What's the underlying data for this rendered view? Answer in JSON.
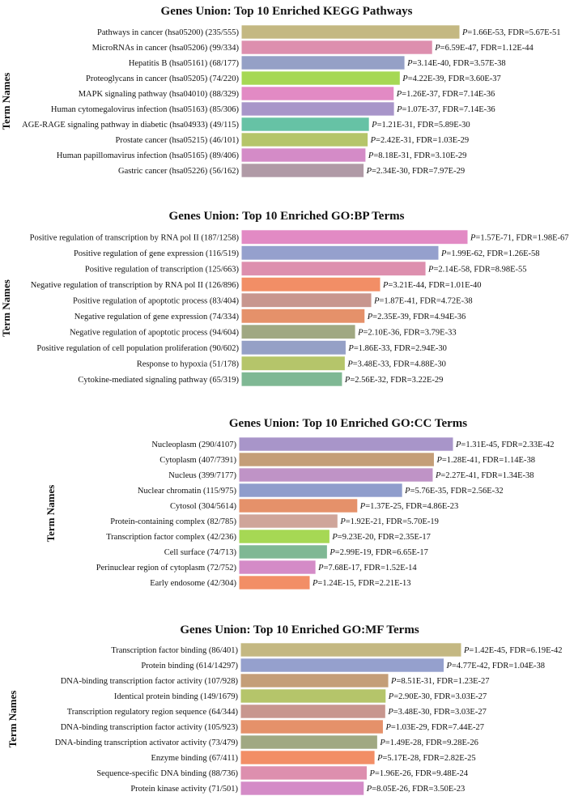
{
  "chart_data": [
    {
      "type": "bar",
      "orientation": "horizontal",
      "title": "Genes Union: Top 10 Enriched KEGG Pathways",
      "ylabel": "Term Names",
      "bar_value": "-log10(P)",
      "categories": [
        "Pathways in cancer (hsa05200) (235/555)",
        "MicroRNAs in cancer (hsa05206) (99/334)",
        "Hepatitis B (hsa05161) (68/177)",
        "Proteoglycans in cancer (hsa05205) (74/220)",
        "MAPK signaling pathway (hsa04010) (88/329)",
        "Human cytomegalovirus infection (hsa05163) (85/306)",
        "AGE-RAGE signaling pathway in diabetic (hsa04933) (49/115)",
        "Prostate cancer (hsa05215) (46/101)",
        "Human papillomavirus infection (hsa05165) (89/406)",
        "Gastric cancer (hsa05226) (56/162)"
      ],
      "p_values": [
        "1.66E-53",
        "6.59E-47",
        "3.14E-40",
        "4.22E-39",
        "1.26E-37",
        "1.07E-37",
        "1.21E-31",
        "2.42E-31",
        "8.18E-31",
        "2.34E-30"
      ],
      "fdr": [
        "5.67E-51",
        "1.12E-44",
        "3.57E-38",
        "3.60E-37",
        "7.14E-36",
        "7.14E-36",
        "5.89E-30",
        "1.03E-29",
        "3.10E-29",
        "7.97E-29"
      ],
      "colors": [
        "#c4b882",
        "#dd8fae",
        "#95a0c6",
        "#a6d854",
        "#e28ac4",
        "#a895c9",
        "#66c2a5",
        "#b5c56a",
        "#d48bc7",
        "#b09aa6"
      ]
    },
    {
      "type": "bar",
      "orientation": "horizontal",
      "title": "Genes Union: Top 10 Enriched GO:BP Terms",
      "ylabel": "Term Names",
      "bar_value": "-log10(P)",
      "categories": [
        "Positive regulation of transcription by RNA pol II (187/1258)",
        "Positive regulation of gene expression (116/519)",
        "Positive regulation of transcription (125/663)",
        "Negative regulation of transcription by RNA pol II (126/896)",
        "Positive regulation of apoptotic process (83/404)",
        "Negative regulation of gene expression (74/334)",
        "Negative regulation of apoptotic process (94/604)",
        "Positive regulation of cell population proliferation (90/602)",
        "Response to hypoxia (51/178)",
        "Cytokine-mediated signaling pathway (65/319)"
      ],
      "p_values": [
        "1.57E-71",
        "1.99E-62",
        "2.14E-58",
        "3.21E-44",
        "1.87E-41",
        "2.35E-39",
        "2.10E-36",
        "1.86E-33",
        "3.48E-33",
        "2.56E-32"
      ],
      "fdr": [
        "1.98E-67",
        "1.26E-58",
        "8.98E-55",
        "1.01E-40",
        "4.72E-38",
        "4.94E-36",
        "3.79E-33",
        "2.94E-30",
        "4.88E-30",
        "3.22E-29"
      ],
      "colors": [
        "#e28ac4",
        "#95a0cd",
        "#dd8fae",
        "#f28e66",
        "#c8968e",
        "#e5916a",
        "#a0a882",
        "#95a0c6",
        "#b5c56a",
        "#7fb894"
      ]
    },
    {
      "type": "bar",
      "orientation": "horizontal",
      "title": "Genes Union: Top 10 Enriched GO:CC Terms",
      "ylabel": "Term Names",
      "bar_value": "-log10(P)",
      "categories": [
        "Nucleoplasm (290/4107)",
        "Cytoplasm (407/7391)",
        "Nucleus (399/7177)",
        "Nuclear chromatin (115/975)",
        "Cytosol (304/5614)",
        "Protein-containing complex (82/785)",
        "Transcription factor complex (42/236)",
        "Cell surface (74/713)",
        "Perinuclear region of cytoplasm (72/752)",
        "Early endosome (42/304)"
      ],
      "p_values": [
        "1.31E-45",
        "1.28E-41",
        "2.27E-41",
        "5.76E-35",
        "1.37E-25",
        "1.92E-21",
        "9.23E-20",
        "2.99E-19",
        "7.68E-17",
        "1.24E-15"
      ],
      "fdr": [
        "2.33E-42",
        "1.14E-38",
        "1.34E-38",
        "2.56E-32",
        "4.86E-23",
        "5.70E-19",
        "2.35E-17",
        "6.65E-17",
        "1.52E-14",
        "2.21E-13"
      ],
      "colors": [
        "#a895c9",
        "#c49e78",
        "#bf93c6",
        "#8f9dcc",
        "#e5916a",
        "#cfa59a",
        "#a6d854",
        "#7fb894",
        "#d48bc7",
        "#f28e66"
      ]
    },
    {
      "type": "bar",
      "orientation": "horizontal",
      "title": "Genes Union: Top 10 Enriched GO:MF Terms",
      "ylabel": "Term Names",
      "bar_value": "-log10(P)",
      "categories": [
        "Transcription factor binding (86/401)",
        "Protein binding (614/14297)",
        "DNA-binding transcription factor activity (107/928)",
        "Identical protein binding (149/1679)",
        "Transcription regulatory region sequence (64/344)",
        "DNA-binding transcription factor activity (105/923)",
        "DNA-binding transcription activator activity (73/479)",
        "Enzyme binding (67/411)",
        "Sequence-specific DNA binding (88/736)",
        "Protein kinase activity (71/501)"
      ],
      "p_values": [
        "1.42E-45",
        "4.77E-42",
        "8.51E-31",
        "2.90E-30",
        "3.48E-30",
        "1.03E-29",
        "1.49E-28",
        "5.17E-28",
        "1.96E-26",
        "8.05E-26"
      ],
      "fdr": [
        "6.19E-42",
        "1.04E-38",
        "1.23E-27",
        "3.03E-27",
        "3.03E-27",
        "7.44E-27",
        "9.28E-26",
        "2.82E-25",
        "9.48E-24",
        "3.50E-23"
      ],
      "colors": [
        "#c4b882",
        "#95a0cd",
        "#c49e78",
        "#b5c56a",
        "#c8968e",
        "#e5916a",
        "#a0a882",
        "#f28e66",
        "#dd8fae",
        "#d48bc7"
      ]
    }
  ]
}
